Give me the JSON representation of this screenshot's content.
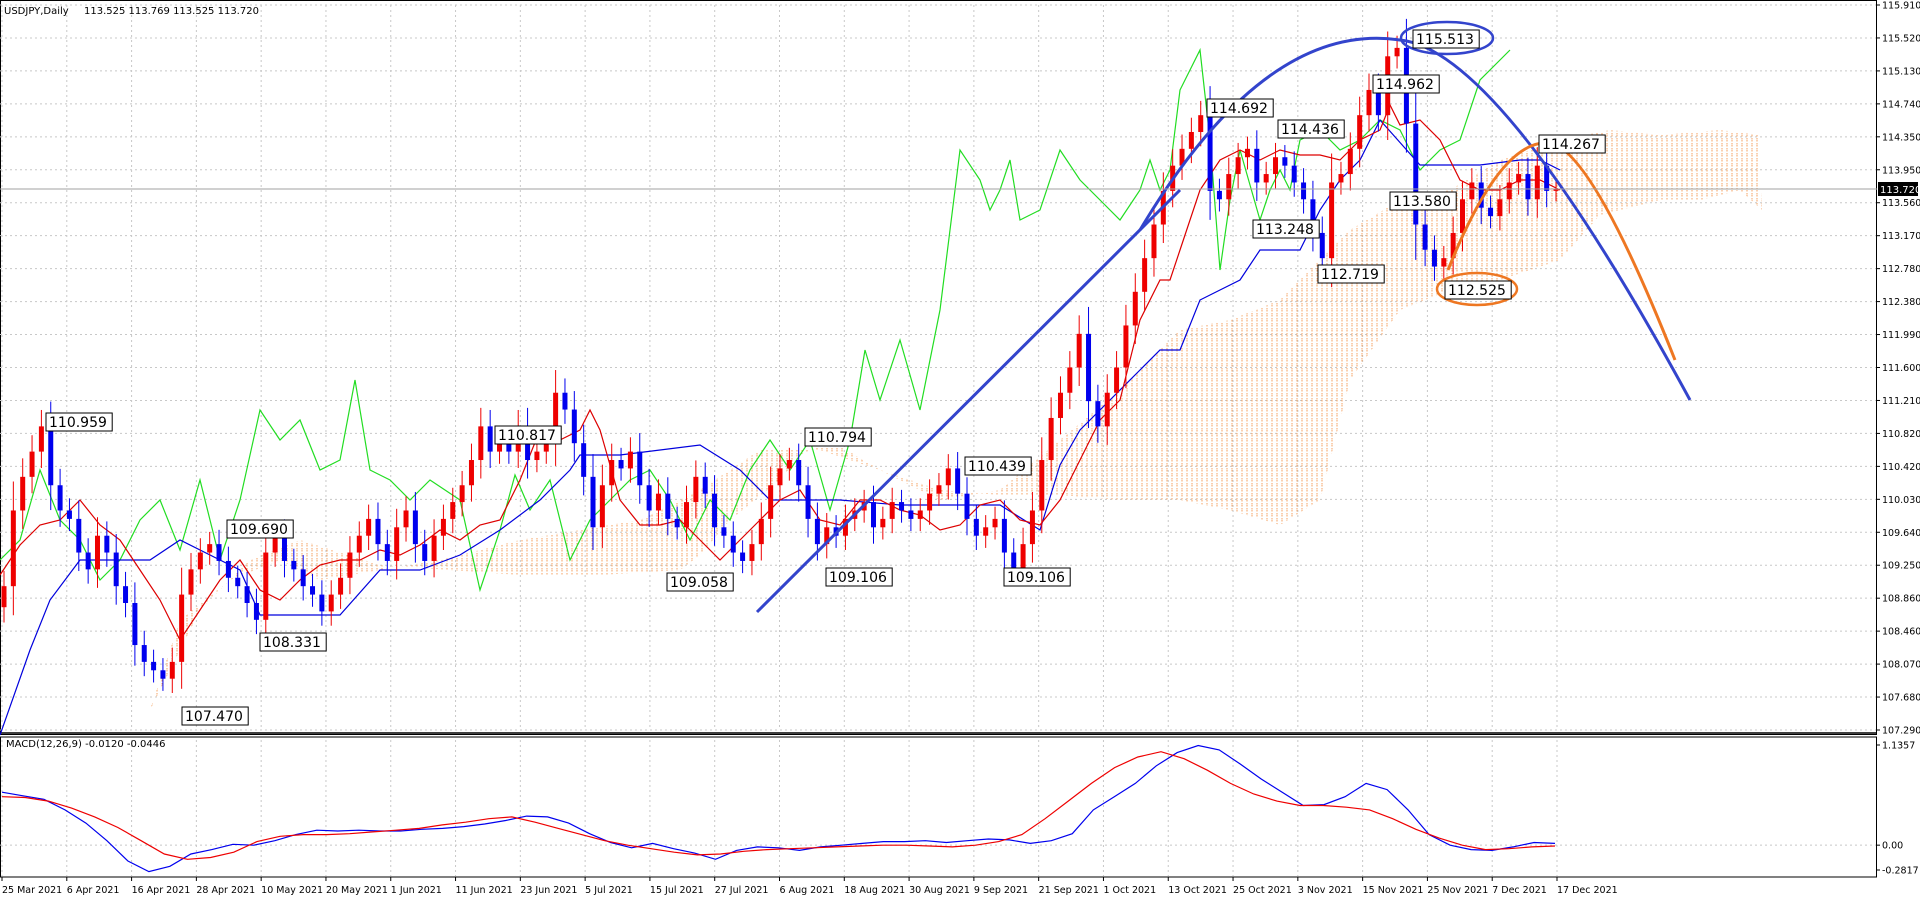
{
  "chart_data": [
    {
      "type": "candlestick",
      "title": "USDJPY,Daily",
      "ohlc_readout": "113.525 113.769 113.525 113.720",
      "last_price": 113.72,
      "price_label": "113.720",
      "ylim": [
        107.29,
        115.91
      ],
      "y_ticks": [
        "115.910",
        "115.520",
        "115.130",
        "114.740",
        "114.350",
        "113.950",
        "113.560",
        "113.170",
        "112.780",
        "112.380",
        "111.990",
        "111.600",
        "111.210",
        "110.820",
        "110.420",
        "110.030",
        "109.640",
        "109.250",
        "108.860",
        "108.460",
        "108.070",
        "107.680",
        "107.290"
      ],
      "x_ticks": [
        "25 Mar 2021",
        "6 Apr 2021",
        "16 Apr 2021",
        "28 Apr 2021",
        "10 May 2021",
        "20 May 2021",
        "1 Jun 2021",
        "11 Jun 2021",
        "23 Jun 2021",
        "5 Jul 2021",
        "15 Jul 2021",
        "27 Jul 2021",
        "6 Aug 2021",
        "18 Aug 2021",
        "30 Aug 2021",
        "9 Sep 2021",
        "21 Sep 2021",
        "1 Oct 2021",
        "13 Oct 2021",
        "25 Oct 2021",
        "3 Nov 2021",
        "15 Nov 2021",
        "25 Nov 2021",
        "7 Dec 2021",
        "17 Dec 2021"
      ],
      "bar_closes": [
        109.0,
        109.9,
        110.3,
        110.6,
        110.9,
        110.2,
        109.9,
        109.8,
        109.4,
        109.2,
        109.6,
        109.4,
        109.0,
        108.8,
        108.3,
        108.1,
        108.0,
        107.9,
        108.1,
        108.9,
        109.2,
        109.4,
        109.5,
        109.3,
        109.1,
        109.0,
        108.8,
        108.6,
        109.4,
        109.6,
        109.3,
        109.2,
        109.0,
        108.9,
        108.7,
        108.9,
        109.1,
        109.4,
        109.6,
        109.8,
        109.5,
        109.3,
        109.7,
        109.9,
        109.5,
        109.3,
        109.6,
        109.8,
        110.0,
        110.2,
        110.5,
        110.9,
        110.6,
        110.7,
        110.6,
        110.9,
        110.5,
        110.6,
        110.7,
        111.3,
        111.1,
        110.7,
        110.3,
        109.7,
        110.2,
        110.5,
        110.4,
        110.6,
        110.2,
        109.9,
        110.1,
        109.8,
        109.7,
        110.0,
        110.3,
        110.1,
        109.7,
        109.6,
        109.4,
        109.3,
        109.5,
        109.8,
        110.2,
        110.4,
        110.5,
        110.2,
        109.8,
        109.5,
        109.7,
        109.6,
        109.8,
        109.9,
        110.0,
        109.7,
        109.8,
        110.0,
        109.9,
        109.8,
        109.9,
        110.1,
        110.2,
        110.4,
        110.1,
        109.8,
        109.6,
        109.7,
        109.8,
        109.4,
        109.2,
        109.5,
        109.9,
        110.5,
        111.0,
        111.3,
        111.6,
        112.0,
        111.2,
        110.9,
        111.3,
        111.6,
        112.1,
        112.5,
        112.9,
        113.3,
        113.7,
        114.0,
        114.2,
        114.4,
        114.6,
        113.7,
        113.6,
        113.9,
        114.1,
        114.2,
        113.8,
        113.9,
        114.1,
        114.0,
        113.8,
        113.6,
        113.2,
        112.9,
        113.8,
        113.9,
        114.2,
        114.6,
        114.9,
        114.6,
        115.3,
        115.4,
        114.5,
        113.3,
        113.0,
        112.8,
        112.9,
        113.2,
        113.6,
        113.8,
        113.5,
        113.4,
        113.6,
        113.8,
        113.9,
        113.6,
        114.0,
        113.7,
        113.72
      ]
    },
    {
      "type": "line",
      "title": "MACD(12,26,9) -0.0120 -0.0446",
      "y_ticks": [
        "1.1357",
        "0.00",
        "-0.2817"
      ],
      "series": [
        {
          "values": [
            0.6,
            0.56,
            0.52,
            0.4,
            0.25,
            0.05,
            -0.18,
            -0.3,
            -0.24,
            -0.1,
            -0.05,
            0.01,
            0.0,
            0.05,
            0.12,
            0.17,
            0.16,
            0.17,
            0.16,
            0.16,
            0.18,
            0.19,
            0.21,
            0.24,
            0.28,
            0.33,
            0.32,
            0.25,
            0.13,
            0.03,
            -0.03,
            0.02,
            -0.04,
            -0.09,
            -0.16,
            -0.06,
            -0.02,
            -0.03,
            -0.06,
            -0.02,
            0.0,
            0.02,
            0.04,
            0.04,
            0.05,
            0.03,
            0.05,
            0.07,
            0.06,
            0.02,
            0.05,
            0.13,
            0.4,
            0.55,
            0.7,
            0.9,
            1.05,
            1.13,
            1.08,
            0.92,
            0.75,
            0.6,
            0.45,
            0.46,
            0.55,
            0.7,
            0.63,
            0.4,
            0.12,
            0.0,
            -0.05,
            -0.06,
            -0.02,
            0.03,
            0.02
          ]
        },
        {
          "values": [
            0.55,
            0.54,
            0.5,
            0.42,
            0.32,
            0.2,
            0.05,
            -0.1,
            -0.16,
            -0.14,
            -0.08,
            0.04,
            0.1,
            0.12,
            0.12,
            0.13,
            0.15,
            0.17,
            0.19,
            0.23,
            0.26,
            0.3,
            0.32,
            0.26,
            0.19,
            0.12,
            0.05,
            0.0,
            -0.04,
            -0.08,
            -0.11,
            -0.1,
            -0.07,
            -0.05,
            -0.04,
            -0.03,
            -0.02,
            -0.01,
            0.0,
            0.0,
            -0.01,
            -0.02,
            0.0,
            0.04,
            0.12,
            0.3,
            0.5,
            0.7,
            0.88,
            1.0,
            1.06,
            0.98,
            0.85,
            0.7,
            0.58,
            0.5,
            0.45,
            0.45,
            0.43,
            0.4,
            0.3,
            0.18,
            0.08,
            0.0,
            -0.05,
            -0.04,
            -0.02,
            -0.01
          ]
        }
      ]
    }
  ],
  "annotations": [
    "110.959",
    "109.690",
    "108.331",
    "107.470",
    "110.817",
    "109.058",
    "110.794",
    "109.106",
    "110.439",
    "109.106",
    "114.692",
    "114.436",
    "113.248",
    "112.719",
    "114.962",
    "115.513",
    "113.580",
    "112.525",
    "114.267"
  ]
}
